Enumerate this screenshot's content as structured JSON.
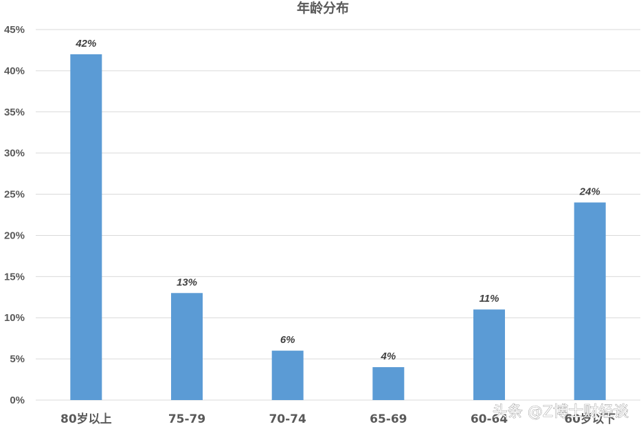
{
  "chart_data": {
    "type": "bar",
    "title": "年龄分布",
    "xlabel": "",
    "ylabel": "",
    "categories": [
      "80岁以上",
      "75-79",
      "70-74",
      "65-69",
      "60-64",
      "60岁以下"
    ],
    "values": [
      42,
      13,
      6,
      4,
      11,
      24
    ],
    "data_labels": [
      "42%",
      "13%",
      "6%",
      "4%",
      "11%",
      "24%"
    ],
    "ylim": [
      0,
      45
    ],
    "y_ticks": [
      0,
      5,
      10,
      15,
      20,
      25,
      30,
      35,
      40,
      45
    ],
    "y_tick_labels": [
      "0%",
      "5%",
      "10%",
      "15%",
      "20%",
      "25%",
      "30%",
      "35%",
      "40%",
      "45%"
    ],
    "grid": true,
    "legend": "none",
    "bar_color": "#5b9bd5"
  },
  "watermark": {
    "text": "头条 @Z博士财经谈"
  }
}
